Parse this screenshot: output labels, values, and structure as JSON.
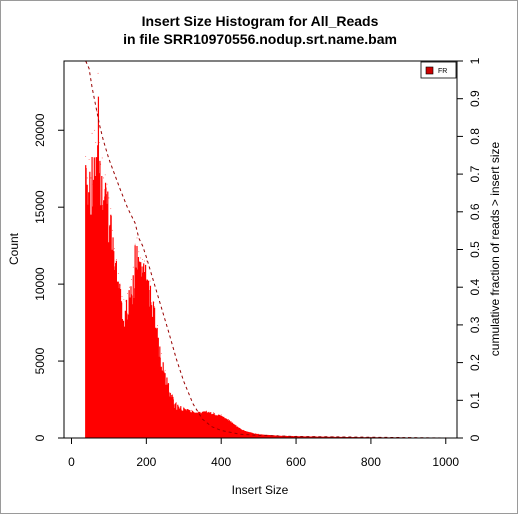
{
  "chart_data": {
    "type": "histogram",
    "title_line1": "Insert Size Histogram for All_Reads",
    "title_line2": "in file SRR10970556.nodup.srt.name.bam",
    "xlabel": "Insert Size",
    "ylabel": "Count",
    "y2label": "cumulative fraction of reads > insert size",
    "xlim": [
      -20,
      1030
    ],
    "ylim": [
      0,
      24500
    ],
    "y2lim": [
      0,
      1
    ],
    "x_ticks": [
      0,
      200,
      400,
      600,
      800,
      1000
    ],
    "y_ticks": [
      0,
      5000,
      10000,
      15000,
      20000
    ],
    "y2_ticks": [
      0,
      0.1,
      0.2,
      0.3,
      0.4,
      0.5,
      0.6,
      0.7,
      0.8,
      0.9,
      1
    ],
    "y2_tick_labels": [
      "0",
      "0.1",
      "0.2",
      "0.3",
      "0.4",
      "0.5",
      "0.6",
      "0.7",
      "0.8",
      "0.9",
      "1"
    ],
    "legend": {
      "entries": [
        "FR"
      ],
      "position": "top-right"
    },
    "series": [
      {
        "name": "FR",
        "kind": "histogram",
        "color": "#ff0000",
        "envelope": [
          [
            38,
            18300
          ],
          [
            42,
            16900
          ],
          [
            47,
            18100
          ],
          [
            52,
            16900
          ],
          [
            55,
            19800
          ],
          [
            58,
            16500
          ],
          [
            62,
            20000
          ],
          [
            65,
            19200
          ],
          [
            68,
            21200
          ],
          [
            71,
            23700
          ],
          [
            74,
            19200
          ],
          [
            78,
            17800
          ],
          [
            82,
            18200
          ],
          [
            86,
            16900
          ],
          [
            90,
            17100
          ],
          [
            95,
            16500
          ],
          [
            100,
            15600
          ],
          [
            105,
            14900
          ],
          [
            110,
            13500
          ],
          [
            115,
            12300
          ],
          [
            120,
            11600
          ],
          [
            125,
            10700
          ],
          [
            130,
            9900
          ],
          [
            135,
            9200
          ],
          [
            140,
            9000
          ],
          [
            145,
            8900
          ],
          [
            150,
            9400
          ],
          [
            155,
            9800
          ],
          [
            160,
            10300
          ],
          [
            165,
            11100
          ],
          [
            170,
            12600
          ],
          [
            175,
            13000
          ],
          [
            180,
            12100
          ],
          [
            185,
            11700
          ],
          [
            190,
            11600
          ],
          [
            195,
            11500
          ],
          [
            200,
            11500
          ],
          [
            210,
            10200
          ],
          [
            220,
            8800
          ],
          [
            230,
            7300
          ],
          [
            240,
            5500
          ],
          [
            250,
            4400
          ],
          [
            260,
            3500
          ],
          [
            270,
            2800
          ],
          [
            280,
            2300
          ],
          [
            300,
            2000
          ],
          [
            320,
            1800
          ],
          [
            340,
            1700
          ],
          [
            360,
            1750
          ],
          [
            380,
            1650
          ],
          [
            400,
            1500
          ],
          [
            420,
            1200
          ],
          [
            440,
            800
          ],
          [
            460,
            500
          ],
          [
            480,
            350
          ],
          [
            500,
            250
          ],
          [
            550,
            160
          ],
          [
            600,
            120
          ],
          [
            700,
            80
          ],
          [
            800,
            50
          ],
          [
            900,
            35
          ],
          [
            1000,
            25
          ]
        ]
      },
      {
        "name": "cumulative fraction of reads > insert size",
        "kind": "line",
        "style": "dashed",
        "color": "#990000",
        "axis": "right",
        "points": [
          [
            38,
            1.0
          ],
          [
            47,
            0.98
          ],
          [
            55,
            0.93
          ],
          [
            65,
            0.88
          ],
          [
            75,
            0.83
          ],
          [
            85,
            0.79
          ],
          [
            100,
            0.74
          ],
          [
            115,
            0.7
          ],
          [
            130,
            0.66
          ],
          [
            150,
            0.61
          ],
          [
            170,
            0.57
          ],
          [
            180,
            0.53
          ],
          [
            190,
            0.51
          ],
          [
            200,
            0.48
          ],
          [
            215,
            0.43
          ],
          [
            230,
            0.38
          ],
          [
            245,
            0.33
          ],
          [
            260,
            0.28
          ],
          [
            280,
            0.21
          ],
          [
            300,
            0.15
          ],
          [
            325,
            0.09
          ],
          [
            350,
            0.05
          ],
          [
            375,
            0.03
          ],
          [
            400,
            0.02
          ],
          [
            450,
            0.01
          ],
          [
            500,
            0.007
          ],
          [
            600,
            0.004
          ],
          [
            800,
            0.002
          ],
          [
            1000,
            0.0
          ]
        ]
      }
    ]
  }
}
